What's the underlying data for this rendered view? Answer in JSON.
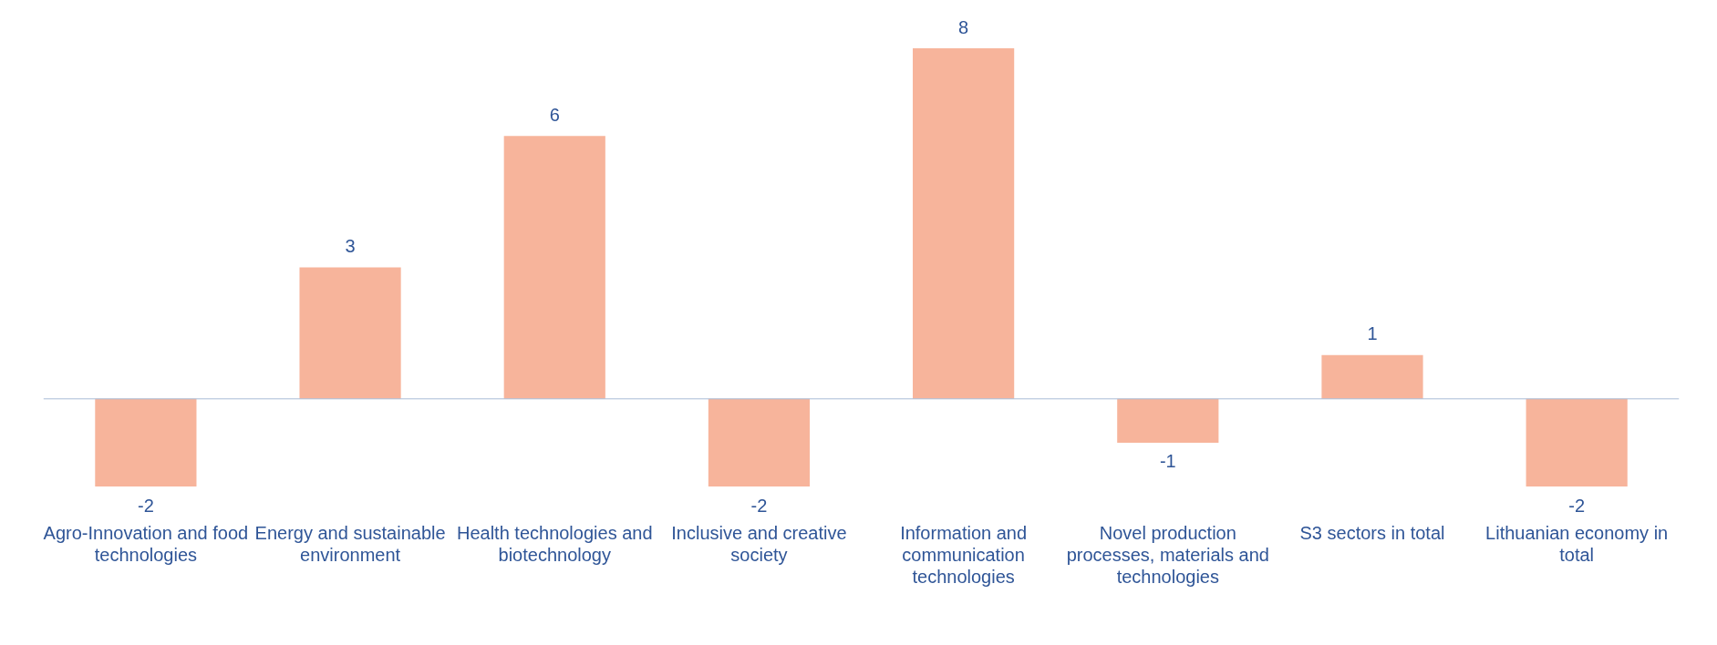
{
  "chart_data": {
    "type": "bar",
    "categories": [
      "Agro-Innovation and food technologies",
      "Energy and sustainable environment",
      "Health technologies and biotechnology",
      "Inclusive and creative society",
      "Information and communication technologies",
      "Novel production processes, materials and technologies",
      "S3 sectors in total",
      "Lithuanian economy in total"
    ],
    "values": [
      -2,
      3,
      6,
      -2,
      8,
      -1,
      1,
      -2
    ],
    "color": "#f7b49b",
    "data_labels": true,
    "grid": false,
    "ref_lines": [
      {
        "axis": "y",
        "value": 0,
        "color": "#a9bcd6"
      }
    ],
    "legend": false
  }
}
